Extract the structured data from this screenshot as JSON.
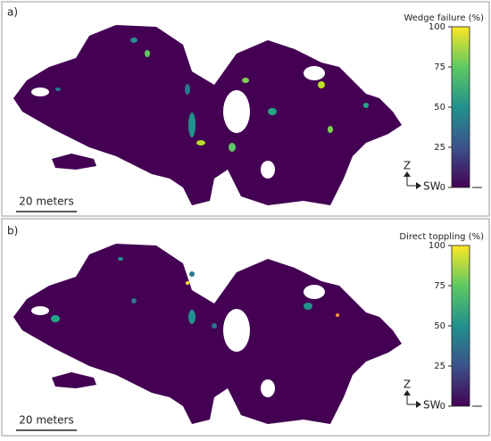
{
  "panels": [
    {
      "label": "a)",
      "colorbar": {
        "title": "Wedge failure (%)",
        "ticks": [
          0,
          25,
          50,
          75,
          100
        ]
      },
      "scale_bar": "20 meters",
      "axes": {
        "up": "Z",
        "right": "SW"
      }
    },
    {
      "label": "b)",
      "colorbar": {
        "title": "Direct toppling (%)",
        "ticks": [
          0,
          25,
          50,
          75,
          100
        ]
      },
      "scale_bar": "20 meters",
      "axes": {
        "up": "Z",
        "right": "SW"
      }
    }
  ]
}
